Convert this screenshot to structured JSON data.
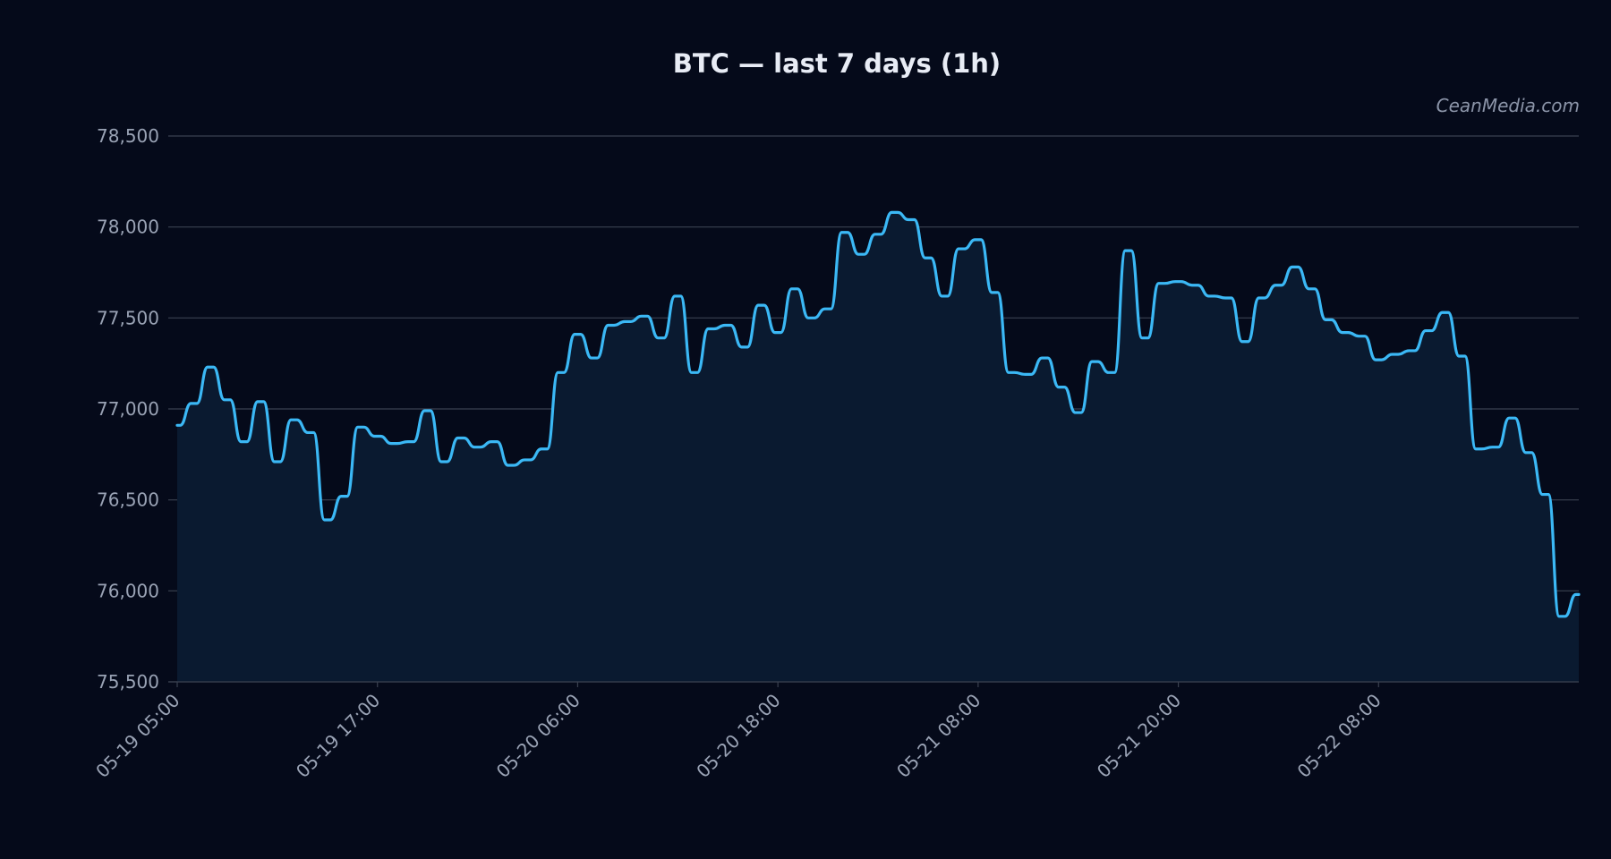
{
  "chart_data": {
    "type": "area",
    "title": "BTC — last 7 days (1h)",
    "watermark": "CeanMedia.com",
    "xlabel": "",
    "ylabel": "",
    "ylim": [
      75500,
      78500
    ],
    "y_ticks": [
      75500,
      76000,
      76500,
      77000,
      77500,
      78000,
      78500
    ],
    "y_tick_labels": [
      "75,500",
      "76,000",
      "76,500",
      "77,000",
      "77,500",
      "78,000",
      "78,500"
    ],
    "x_ticks": [
      {
        "label": "05-19 05:00",
        "hour": 0
      },
      {
        "label": "05-19 17:00",
        "hour": 12
      },
      {
        "label": "05-20 06:00",
        "hour": 24
      },
      {
        "label": "05-20 18:00",
        "hour": 36
      },
      {
        "label": "05-21 08:00",
        "hour": 48
      },
      {
        "label": "05-21 20:00",
        "hour": 60
      },
      {
        "label": "05-22 08:00",
        "hour": 72
      }
    ],
    "x_start": "05-19 05:00",
    "grid": true,
    "colors": {
      "background": "#050a1a",
      "line": "#3bb8f5",
      "fill": "#0a1a30",
      "grid": "#3a4150",
      "text": "#e8ecf5",
      "tick": "#9aa3b5"
    },
    "series": [
      {
        "values": [
          76910,
          77030,
          77230,
          77050,
          76820,
          77040,
          76710,
          76940,
          76870,
          76390,
          76520,
          76900,
          76850,
          76810,
          76820,
          76990,
          76710,
          76840,
          76790,
          76820,
          76690,
          76720,
          76780,
          77200,
          77410,
          77280,
          77460,
          77480,
          77510,
          77390,
          77620,
          77200,
          77440,
          77460,
          77340,
          77570,
          77420,
          77660,
          77500,
          77550,
          77970,
          77850,
          77960,
          78080,
          78040,
          77830,
          77620,
          77880,
          77930,
          77640,
          77200,
          77190,
          77280,
          77120,
          76980,
          77260,
          77200,
          77870,
          77390,
          77690,
          77700,
          77680,
          77620,
          77610,
          77370,
          77610,
          77680,
          77780,
          77660,
          77490,
          77420,
          77400,
          77270,
          77300,
          77320,
          77430,
          77530,
          77290,
          76780,
          76790,
          76950,
          76760,
          76530,
          75860,
          75980
        ]
      }
    ]
  }
}
